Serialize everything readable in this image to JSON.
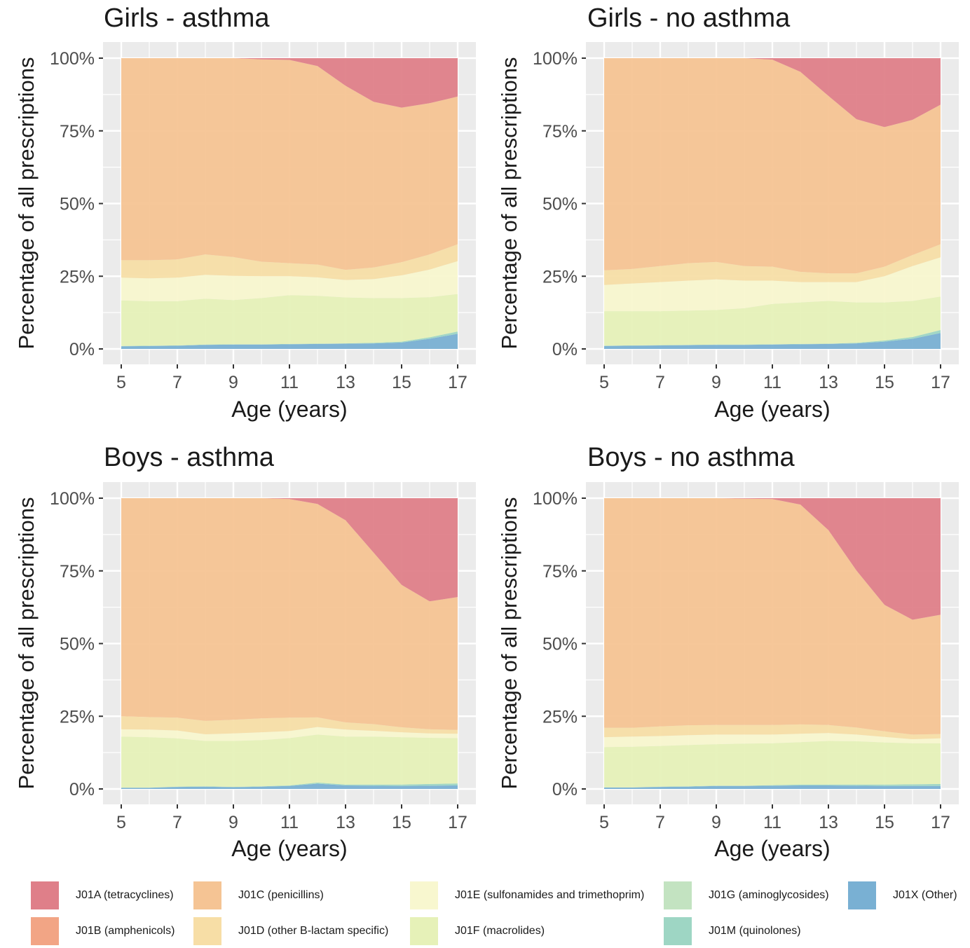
{
  "chart_data": [
    {
      "type": "area",
      "title": "Girls - asthma",
      "xlabel": "Age (years)",
      "ylabel": "Percentage of all prescriptions",
      "xlim": [
        5,
        17
      ],
      "ylim": [
        0,
        100
      ],
      "x_ticks": [
        "5",
        "7",
        "9",
        "11",
        "13",
        "15",
        "17"
      ],
      "y_ticks": [
        "0%",
        "25%",
        "50%",
        "75%",
        "100%"
      ],
      "x": [
        5,
        6,
        7,
        8,
        9,
        10,
        11,
        12,
        13,
        14,
        15,
        16,
        17
      ],
      "series": [
        {
          "name": "J01X (Other)",
          "values": [
            0.9,
            1.0,
            1.1,
            1.4,
            1.5,
            1.5,
            1.6,
            1.7,
            1.8,
            1.9,
            2.2,
            3.5,
            5.2
          ]
        },
        {
          "name": "J01M (quinolones)",
          "values": [
            0.1,
            0.1,
            0.1,
            0.1,
            0.1,
            0.1,
            0.1,
            0.1,
            0.1,
            0.2,
            0.3,
            0.5,
            0.8
          ]
        },
        {
          "name": "J01G (aminoglycosides)",
          "values": [
            0,
            0,
            0,
            0,
            0,
            0,
            0,
            0,
            0,
            0,
            0,
            0,
            0
          ]
        },
        {
          "name": "J01F (macrolides)",
          "values": [
            15.7,
            15.3,
            15.2,
            15.8,
            15.2,
            15.9,
            16.8,
            16.5,
            15.8,
            15.4,
            15.0,
            13.8,
            12.9
          ]
        },
        {
          "name": "J01E (sulfonamides and trimethoprim)",
          "values": [
            7.8,
            7.9,
            8.1,
            8.2,
            8.3,
            7.5,
            6.5,
            6.3,
            6.0,
            6.5,
            7.8,
            9.5,
            11.3
          ]
        },
        {
          "name": "J01D (other B-lactam specific)",
          "values": [
            6.0,
            6.2,
            6.3,
            7.0,
            6.5,
            5.0,
            4.5,
            4.4,
            3.5,
            4.0,
            4.5,
            5.2,
            5.8
          ]
        },
        {
          "name": "J01C (penicillins)",
          "values": [
            69.5,
            69.5,
            69.2,
            67.5,
            68.4,
            69.6,
            69.9,
            68.3,
            63.3,
            57.0,
            53.2,
            52.0,
            50.8
          ]
        },
        {
          "name": "J01B (amphenicols)",
          "values": [
            0,
            0,
            0,
            0,
            0,
            0,
            0,
            0,
            0,
            0,
            0,
            0,
            0
          ]
        },
        {
          "name": "J01A (tetracyclines)",
          "values": [
            0,
            0,
            0,
            0,
            0,
            0.4,
            0.6,
            2.7,
            9.5,
            15.0,
            17.0,
            15.5,
            13.2
          ]
        }
      ]
    },
    {
      "type": "area",
      "title": "Girls - no asthma",
      "xlabel": "Age (years)",
      "ylabel": "Percentage of all prescriptions",
      "xlim": [
        5,
        17
      ],
      "ylim": [
        0,
        100
      ],
      "x_ticks": [
        "5",
        "7",
        "9",
        "11",
        "13",
        "15",
        "17"
      ],
      "y_ticks": [
        "0%",
        "25%",
        "50%",
        "75%",
        "100%"
      ],
      "x": [
        5,
        6,
        7,
        8,
        9,
        10,
        11,
        12,
        13,
        14,
        15,
        16,
        17
      ],
      "series": [
        {
          "name": "J01X (Other)",
          "values": [
            1.0,
            1.1,
            1.2,
            1.3,
            1.4,
            1.4,
            1.5,
            1.6,
            1.7,
            1.9,
            2.5,
            3.5,
            5.5
          ]
        },
        {
          "name": "J01M (quinolones)",
          "values": [
            0.1,
            0.1,
            0.1,
            0.1,
            0.1,
            0.1,
            0.1,
            0.1,
            0.1,
            0.2,
            0.4,
            0.6,
            1.0
          ]
        },
        {
          "name": "J01G (aminoglycosides)",
          "values": [
            0,
            0,
            0,
            0,
            0,
            0,
            0,
            0,
            0,
            0,
            0,
            0,
            0
          ]
        },
        {
          "name": "J01F (macrolides)",
          "values": [
            11.9,
            11.8,
            11.7,
            11.8,
            11.9,
            12.5,
            13.9,
            14.3,
            14.7,
            13.9,
            13.1,
            12.4,
            11.5
          ]
        },
        {
          "name": "J01E (sulfonamides and trimethoprim)",
          "values": [
            9.0,
            9.5,
            10.0,
            10.3,
            10.5,
            9.5,
            8.0,
            7.0,
            6.5,
            7.0,
            9.0,
            12.0,
            13.5
          ]
        },
        {
          "name": "J01D (other B-lactam specific)",
          "values": [
            5.0,
            5.0,
            5.5,
            6.0,
            6.0,
            5.0,
            4.8,
            3.5,
            3.0,
            3.0,
            3.3,
            3.8,
            4.5
          ]
        },
        {
          "name": "J01C (penicillins)",
          "values": [
            73.0,
            72.5,
            71.5,
            70.5,
            70.1,
            71.5,
            71.2,
            68.8,
            61.0,
            53.0,
            48.0,
            46.5,
            48.0
          ]
        },
        {
          "name": "J01B (amphenicols)",
          "values": [
            0,
            0,
            0,
            0,
            0,
            0,
            0,
            0,
            0,
            0,
            0,
            0,
            0
          ]
        },
        {
          "name": "J01A (tetracyclines)",
          "values": [
            0,
            0,
            0,
            0,
            0,
            0,
            0.5,
            4.7,
            13.0,
            21.0,
            23.7,
            21.2,
            16.0
          ]
        }
      ]
    },
    {
      "type": "area",
      "title": "Boys - asthma",
      "xlabel": "Age (years)",
      "ylabel": "Percentage of all prescriptions",
      "xlim": [
        5,
        17
      ],
      "ylim": [
        0,
        100
      ],
      "x_ticks": [
        "5",
        "7",
        "9",
        "11",
        "13",
        "15",
        "17"
      ],
      "y_ticks": [
        "0%",
        "25%",
        "50%",
        "75%",
        "100%"
      ],
      "x": [
        5,
        6,
        7,
        8,
        9,
        10,
        11,
        12,
        13,
        14,
        15,
        16,
        17
      ],
      "series": [
        {
          "name": "J01X (Other)",
          "values": [
            0.4,
            0.4,
            0.7,
            0.8,
            0.6,
            0.8,
            1.0,
            1.8,
            1.2,
            1.1,
            1.0,
            1.1,
            1.2
          ]
        },
        {
          "name": "J01M (quinolones)",
          "values": [
            0.0,
            0.0,
            0.1,
            0.1,
            0.1,
            0.1,
            0.2,
            0.4,
            0.3,
            0.4,
            0.5,
            0.6,
            0.7
          ]
        },
        {
          "name": "J01G (aminoglycosides)",
          "values": [
            0,
            0,
            0,
            0,
            0,
            0,
            0,
            0,
            0,
            0,
            0,
            0,
            0
          ]
        },
        {
          "name": "J01F (macrolides)",
          "values": [
            17.6,
            17.4,
            16.6,
            15.6,
            15.8,
            15.9,
            16.3,
            16.5,
            16.5,
            16.5,
            16.3,
            15.9,
            15.6
          ]
        },
        {
          "name": "J01E (sulfonamides and trimethoprim)",
          "values": [
            2.5,
            2.6,
            2.7,
            2.3,
            2.6,
            2.7,
            2.4,
            2.6,
            2.4,
            2.0,
            1.7,
            1.5,
            1.5
          ]
        },
        {
          "name": "J01D (other B-lactam specific)",
          "values": [
            4.5,
            4.3,
            4.4,
            4.6,
            4.7,
            4.8,
            4.6,
            3.3,
            2.5,
            2.3,
            1.7,
            1.4,
            1.3
          ]
        },
        {
          "name": "J01C (penicillins)",
          "values": [
            75.0,
            75.3,
            75.5,
            76.6,
            76.2,
            75.7,
            75.2,
            73.4,
            69.5,
            59.0,
            49.0,
            44.0,
            45.7
          ]
        },
        {
          "name": "J01B (amphenicols)",
          "values": [
            0,
            0,
            0,
            0,
            0,
            0,
            0,
            0,
            0,
            0,
            0,
            0,
            0
          ]
        },
        {
          "name": "J01A (tetracyclines)",
          "values": [
            0,
            0,
            0,
            0,
            0,
            0,
            0.3,
            2.0,
            7.6,
            18.7,
            29.8,
            35.5,
            34.0
          ]
        }
      ]
    },
    {
      "type": "area",
      "title": "Boys - no asthma",
      "xlabel": "Age (years)",
      "ylabel": "Percentage of all prescriptions",
      "xlim": [
        5,
        17
      ],
      "ylim": [
        0,
        100
      ],
      "x_ticks": [
        "5",
        "7",
        "9",
        "11",
        "13",
        "15",
        "17"
      ],
      "y_ticks": [
        "0%",
        "25%",
        "50%",
        "75%",
        "100%"
      ],
      "x": [
        5,
        6,
        7,
        8,
        9,
        10,
        11,
        12,
        13,
        14,
        15,
        16,
        17
      ],
      "series": [
        {
          "name": "J01X (Other)",
          "values": [
            0.5,
            0.5,
            0.7,
            0.8,
            1.0,
            1.0,
            1.1,
            1.2,
            1.2,
            1.1,
            1.0,
            1.0,
            1.0
          ]
        },
        {
          "name": "J01M (quinolones)",
          "values": [
            0.0,
            0.0,
            0.1,
            0.1,
            0.1,
            0.1,
            0.2,
            0.3,
            0.3,
            0.4,
            0.5,
            0.6,
            0.7
          ]
        },
        {
          "name": "J01G (aminoglycosides)",
          "values": [
            0,
            0,
            0,
            0,
            0,
            0,
            0,
            0,
            0,
            0,
            0,
            0,
            0
          ]
        },
        {
          "name": "J01F (macrolides)",
          "values": [
            13.9,
            14.0,
            14.0,
            14.2,
            14.3,
            14.5,
            14.4,
            14.6,
            15.0,
            14.9,
            14.5,
            14.1,
            14.0
          ]
        },
        {
          "name": "J01E (sulfonamides and trimethoprim)",
          "values": [
            3.4,
            3.5,
            3.4,
            3.4,
            3.3,
            3.1,
            3.0,
            2.9,
            2.7,
            2.3,
            1.9,
            1.4,
            1.7
          ]
        },
        {
          "name": "J01D (other B-lactam specific)",
          "values": [
            3.2,
            3.0,
            3.3,
            3.4,
            3.3,
            3.3,
            3.3,
            3.2,
            2.8,
            2.4,
            1.9,
            1.6,
            1.5
          ]
        },
        {
          "name": "J01C (penicillins)",
          "values": [
            79.0,
            79.0,
            78.5,
            78.1,
            78.0,
            77.8,
            77.7,
            75.6,
            67.0,
            54.0,
            43.5,
            39.5,
            41.0
          ]
        },
        {
          "name": "J01B (amphenicols)",
          "values": [
            0,
            0,
            0,
            0,
            0,
            0,
            0,
            0,
            0,
            0,
            0,
            0,
            0
          ]
        },
        {
          "name": "J01A (tetracyclines)",
          "values": [
            0,
            0,
            0,
            0,
            0,
            0.2,
            0.3,
            2.2,
            11.0,
            24.9,
            36.7,
            41.8,
            40.1
          ]
        }
      ]
    }
  ],
  "legend": {
    "items": [
      {
        "key": "J01A",
        "label": "J01A (tetracyclines)",
        "color": "#df7f89"
      },
      {
        "key": "J01B",
        "label": "J01B (amphenicols)",
        "color": "#f2a585"
      },
      {
        "key": "J01C",
        "label": "J01C (penicillins)",
        "color": "#f5c494"
      },
      {
        "key": "J01D",
        "label": "J01D (other B-lactam specific)",
        "color": "#f7dea6"
      },
      {
        "key": "J01E",
        "label": "J01E (sulfonamides and trimethoprim)",
        "color": "#f8f7cf"
      },
      {
        "key": "J01F",
        "label": "J01F (macrolides)",
        "color": "#e6f1b8"
      },
      {
        "key": "J01G",
        "label": "J01G (aminoglycosides)",
        "color": "#c3e3c1"
      },
      {
        "key": "J01M",
        "label": "J01M (quinolones)",
        "color": "#9ed6c4"
      },
      {
        "key": "J01X",
        "label": "J01X (Other)",
        "color": "#79b0d3"
      }
    ]
  },
  "colors": {
    "panel_background": "#ebebeb",
    "gridline": "#ffffff",
    "text": "#1a1a1a",
    "tick_text": "#4d4d4d"
  }
}
